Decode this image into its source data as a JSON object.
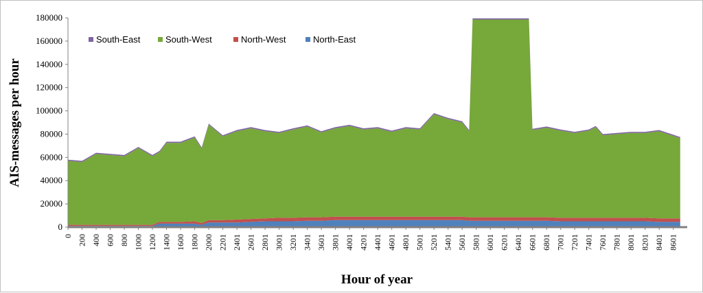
{
  "chart_data": {
    "type": "area",
    "stacked": true,
    "title": "",
    "xlabel": "Hour of year",
    "ylabel": "AIS-messages per hour",
    "xlim": [
      0,
      8760
    ],
    "ylim": [
      0,
      180000
    ],
    "y_ticks": [
      0,
      20000,
      40000,
      60000,
      80000,
      100000,
      120000,
      140000,
      160000,
      180000
    ],
    "x_ticks": [
      0,
      200,
      400,
      600,
      800,
      1000,
      1200,
      1400,
      1600,
      1800,
      2000,
      2201,
      2401,
      2601,
      2801,
      3001,
      3201,
      3401,
      3601,
      3801,
      4001,
      4201,
      4401,
      4601,
      4801,
      5001,
      5201,
      5401,
      5601,
      5801,
      6001,
      6201,
      6401,
      6601,
      6801,
      7001,
      7201,
      7401,
      7601,
      7801,
      8001,
      8201,
      8401,
      8601
    ],
    "legend_position": "top-left",
    "legend": [
      "South-East",
      "South-West",
      "North-West",
      "North-East"
    ],
    "x": [
      0,
      200,
      400,
      600,
      800,
      1000,
      1200,
      1300,
      1400,
      1600,
      1800,
      1900,
      2000,
      2100,
      2200,
      2400,
      2600,
      2800,
      3000,
      3200,
      3400,
      3600,
      3800,
      4000,
      4200,
      4400,
      4600,
      4800,
      5000,
      5200,
      5400,
      5600,
      5700,
      5750,
      6000,
      6200,
      6400,
      6550,
      6600,
      6800,
      7000,
      7200,
      7400,
      7500,
      7600,
      7800,
      8000,
      8200,
      8400,
      8600,
      8700
    ],
    "series": [
      {
        "name": "North-East",
        "values": [
          1000,
          1000,
          1000,
          1000,
          1000,
          1000,
          1000,
          3000,
          3000,
          3000,
          3000,
          2000,
          4000,
          4000,
          4000,
          4000,
          4500,
          5000,
          5000,
          5000,
          5500,
          5500,
          6000,
          6000,
          6000,
          6000,
          6000,
          6000,
          6000,
          6000,
          6000,
          6000,
          5500,
          5500,
          5500,
          5500,
          5500,
          5500,
          5500,
          5500,
          5000,
          5000,
          5000,
          5000,
          5000,
          5000,
          5000,
          5000,
          4500,
          4500,
          4500
        ]
      },
      {
        "name": "North-West",
        "values": [
          1000,
          1000,
          1000,
          1000,
          1000,
          1000,
          1000,
          1500,
          1500,
          1500,
          2000,
          1500,
          2000,
          2000,
          2000,
          2500,
          2500,
          2500,
          3000,
          3000,
          3000,
          3000,
          3000,
          3000,
          3000,
          3000,
          3000,
          3000,
          3000,
          3000,
          3000,
          3000,
          3000,
          3000,
          3000,
          3000,
          3000,
          3000,
          3000,
          3000,
          3000,
          3000,
          3000,
          3000,
          3000,
          3000,
          3000,
          3000,
          3000,
          3000,
          3000
        ]
      },
      {
        "name": "South-West",
        "values": [
          55000,
          54000,
          61000,
          60000,
          59000,
          66000,
          59000,
          60000,
          68000,
          68000,
          72000,
          64000,
          82000,
          77000,
          72000,
          76000,
          78000,
          75000,
          73000,
          76000,
          78000,
          73000,
          76000,
          78000,
          75000,
          76000,
          73000,
          76000,
          75000,
          88000,
          84000,
          81000,
          74000,
          170000,
          170000,
          170000,
          170000,
          170000,
          75000,
          77000,
          75000,
          73000,
          75000,
          78000,
          71000,
          72000,
          73000,
          73000,
          75000,
          71000,
          69000
        ]
      },
      {
        "name": "South-East",
        "values": [
          1000,
          1000,
          1000,
          1000,
          1000,
          1000,
          1000,
          1000,
          1000,
          1000,
          1000,
          1000,
          1000,
          1000,
          1000,
          1000,
          1000,
          1000,
          1000,
          1000,
          1000,
          1000,
          1000,
          1000,
          1000,
          1000,
          1000,
          1000,
          1000,
          1000,
          1000,
          1000,
          1000,
          1000,
          1000,
          1000,
          1000,
          1000,
          1000,
          1000,
          1000,
          1000,
          1000,
          1000,
          1000,
          1000,
          1000,
          1000,
          1000,
          1000,
          1000
        ]
      }
    ],
    "colors": {
      "South-East": "#8064a2",
      "South-West": "#77a83a",
      "North-West": "#c0504d",
      "North-East": "#4f81bd",
      "axis": "#808080"
    }
  }
}
